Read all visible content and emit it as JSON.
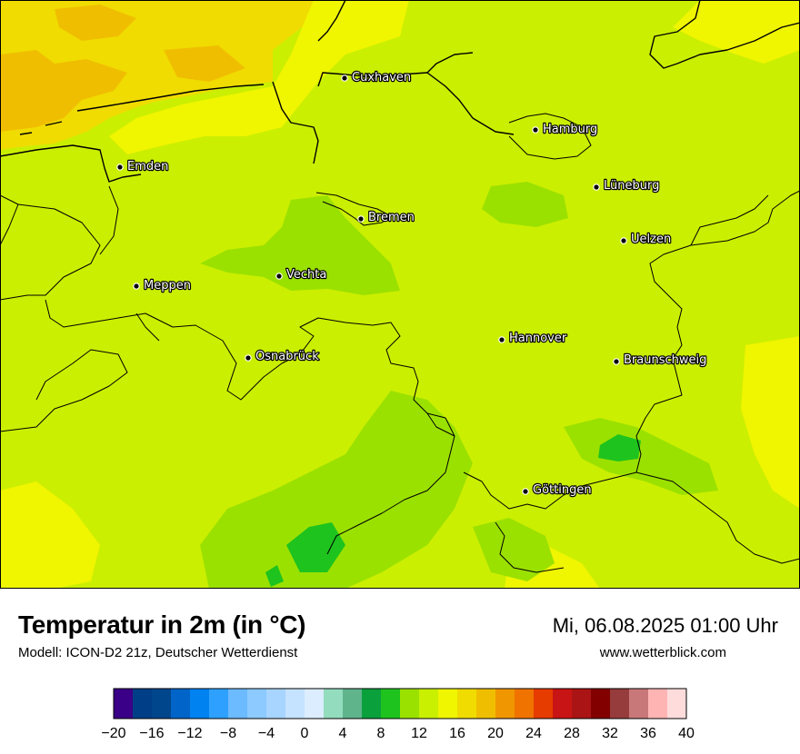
{
  "header": {
    "title": "Temperatur in 2m (in °C)",
    "model_line": "Modell: ICON-D2 21z, Deutscher Wetterdienst",
    "datetime": "Mi, 06.08.2025 01:00 Uhr",
    "website": "www.wetterblick.com"
  },
  "cities": [
    {
      "name": "Cuxhaven"
    },
    {
      "name": "Hamburg"
    },
    {
      "name": "Emden"
    },
    {
      "name": "Lüneburg"
    },
    {
      "name": "Bremen"
    },
    {
      "name": "Uelzen"
    },
    {
      "name": "Vechta"
    },
    {
      "name": "Meppen"
    },
    {
      "name": "Hannover"
    },
    {
      "name": "Osnabrück"
    },
    {
      "name": "Braunschweig"
    },
    {
      "name": "Göttingen"
    }
  ],
  "legend": {
    "unit": "°C",
    "min": -20,
    "max": 40,
    "step": 2,
    "tick_labels": [
      "−20",
      "−16",
      "−12",
      "−8",
      "−4",
      "0",
      "4",
      "8",
      "12",
      "16",
      "20",
      "24",
      "28",
      "32",
      "36",
      "40"
    ],
    "colors": [
      "#3a0087",
      "#003f87",
      "#00468c",
      "#0064c8",
      "#0082f0",
      "#2ea0ff",
      "#6cbaff",
      "#8ccaff",
      "#a8d5ff",
      "#c5e2ff",
      "#dcedff",
      "#93dcbe",
      "#5fb48c",
      "#0aa03c",
      "#1ec31e",
      "#9be100",
      "#c8f000",
      "#f0f500",
      "#f0dc00",
      "#f0be00",
      "#f09600",
      "#f07300",
      "#e63c00",
      "#c81414",
      "#aa1414",
      "#820000",
      "#963c3c",
      "#c87878",
      "#ffb4b4",
      "#ffdcdc"
    ]
  },
  "map_colors": {
    "base": "#cbef00",
    "band_12_14": "#9be100",
    "band_10_12": "#1ec31e",
    "band_16_18": "#f0f500",
    "band_18_20": "#f0dc00",
    "band_20_22": "#f0be00",
    "border": "#000000"
  }
}
